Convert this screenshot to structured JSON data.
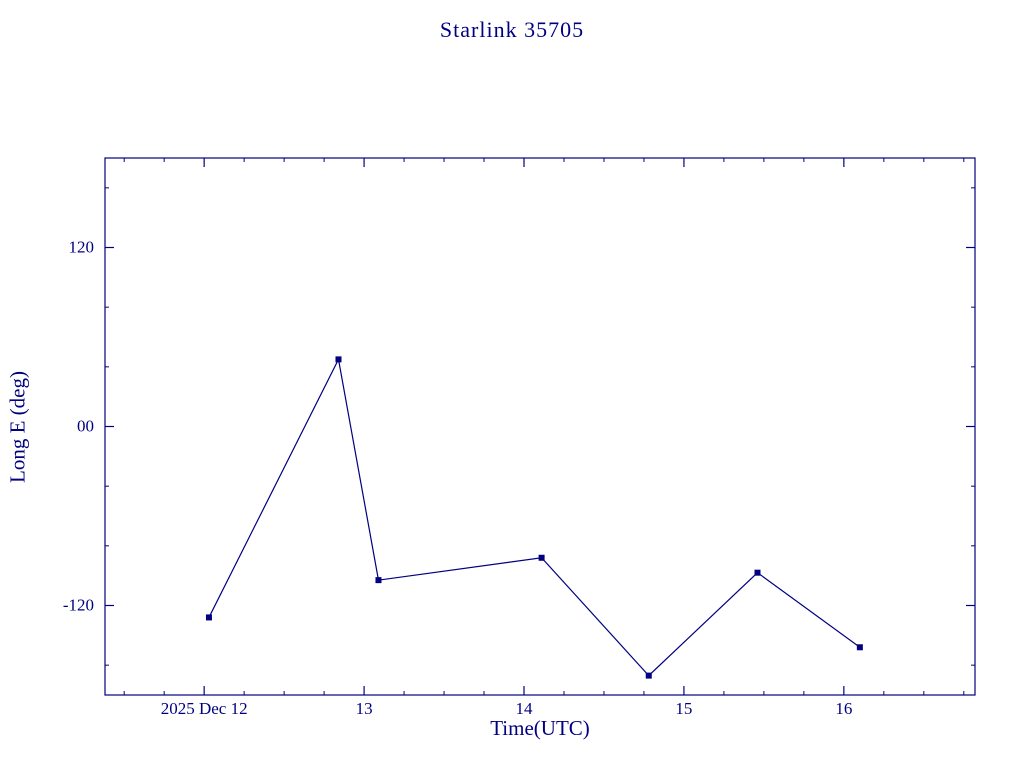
{
  "chart_data": {
    "type": "line",
    "title": "Starlink 35705",
    "xlabel": "Time(UTC)",
    "ylabel": "Long E (deg)",
    "series_name": "Long E",
    "x_unit": "day of 2025 Dec (UTC)",
    "y_unit": "deg",
    "x": [
      12.03,
      12.84,
      13.09,
      14.11,
      14.78,
      15.46,
      16.1
    ],
    "y": [
      -128,
      45,
      -103,
      -88,
      -167,
      -98,
      -148
    ],
    "xlim": [
      11.38,
      16.82
    ],
    "ylim": [
      -180,
      180
    ],
    "x_ticks": [
      {
        "value": 12,
        "label": "2025 Dec 12"
      },
      {
        "value": 13,
        "label": "13"
      },
      {
        "value": 14,
        "label": "14"
      },
      {
        "value": 15,
        "label": "15"
      },
      {
        "value": 16,
        "label": "16"
      }
    ],
    "y_ticks": [
      {
        "value": 120,
        "label": "120"
      },
      {
        "value": 0,
        "label": "00"
      },
      {
        "value": -120,
        "label": "-120"
      }
    ],
    "x_minor_step": 0.25,
    "y_minor_step": 40,
    "grid": false,
    "legend": "none",
    "marker": "square",
    "line_color": "#000080",
    "marker_color": "#000080",
    "axis_color": "#000080",
    "background_color": "#ffffff"
  }
}
